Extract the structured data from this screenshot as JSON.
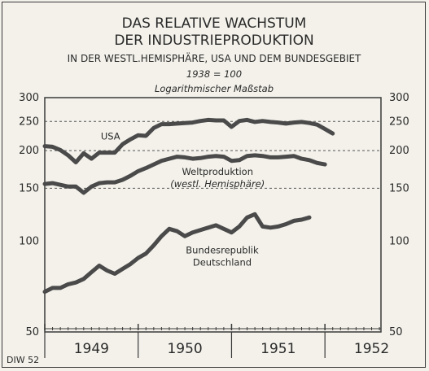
{
  "chart_data": {
    "type": "line",
    "title": "DAS RELATIVE WACHSTUM",
    "title2": "DER INDUSTRIEPRODUKTION",
    "subtitle": "IN DER WESTL.HEMISPHÄRE, USA UND DEM BUNDESGEBIET",
    "base_note": "1938 = 100",
    "scale_note": "Logarithmischer Maßstab",
    "source": "DIW 52",
    "y_scale": "log",
    "ylim": [
      50,
      300
    ],
    "y_ticks": [
      {
        "value": 300,
        "label": "300"
      },
      {
        "value": 250,
        "label": "250"
      },
      {
        "value": 200,
        "label": "200"
      },
      {
        "value": 150,
        "label": "150"
      },
      {
        "value": 100,
        "label": "100"
      },
      {
        "value": 50,
        "label": "50"
      }
    ],
    "dashed_gridlines": [
      250,
      200,
      150
    ],
    "x_range": [
      1949.0,
      1952.6
    ],
    "year_labels": [
      {
        "year": 1949,
        "label": "1949"
      },
      {
        "year": 1950,
        "label": "1950"
      },
      {
        "year": 1951,
        "label": "1951"
      },
      {
        "year": 1952,
        "label": "1952"
      }
    ],
    "x": [
      1949.0,
      1949.083,
      1949.167,
      1949.25,
      1949.333,
      1949.417,
      1949.5,
      1949.583,
      1949.667,
      1949.75,
      1949.833,
      1949.917,
      1950.0,
      1950.083,
      1950.167,
      1950.25,
      1950.333,
      1950.417,
      1950.5,
      1950.583,
      1950.667,
      1950.75,
      1950.833,
      1950.917,
      1951.0,
      1951.083,
      1951.167,
      1951.25,
      1951.333,
      1951.417,
      1951.5,
      1951.583,
      1951.667,
      1951.75,
      1951.833,
      1951.917,
      1952.0,
      1952.083,
      1952.167,
      1952.25,
      1952.333,
      1952.417
    ],
    "series": [
      {
        "name": "USA",
        "label_lines": [
          "USA"
        ],
        "values": [
          207,
          206,
          201,
          193,
          183,
          196,
          188,
          197,
          197,
          197,
          210,
          218,
          225,
          224,
          238,
          245,
          245,
          246,
          247,
          248,
          251,
          253,
          252,
          252,
          240,
          251,
          253,
          249,
          251,
          249,
          248,
          246,
          248,
          249,
          247,
          244,
          236,
          228,
          0,
          0,
          0,
          0
        ]
      },
      {
        "name": "Weltproduktion (westl. Hemisphäre)",
        "label_lines": [
          "Weltproduktion",
          "(westl. Hemisphäre)"
        ],
        "values": [
          155,
          156,
          154,
          152,
          152,
          145,
          152,
          156,
          157,
          157,
          160,
          165,
          171,
          175,
          180,
          185,
          188,
          191,
          190,
          188,
          189,
          191,
          192,
          191,
          185,
          186,
          192,
          193,
          192,
          190,
          190,
          191,
          192,
          188,
          186,
          182,
          180,
          0,
          0,
          0,
          0,
          0
        ]
      },
      {
        "name": "Bundesrepublik Deutschland",
        "label_lines": [
          "Bundesrepublik",
          "Deutschland"
        ],
        "values": [
          68,
          70,
          70,
          72,
          73,
          75,
          79,
          83,
          80,
          78,
          81,
          84,
          88,
          91,
          97,
          104,
          110,
          108,
          104,
          107,
          109,
          111,
          113,
          110,
          107,
          112,
          120,
          123,
          112,
          111,
          112,
          114,
          117,
          118,
          120,
          0,
          0,
          0,
          0,
          0,
          0,
          0
        ]
      }
    ],
    "grid": false,
    "legend": "inline labels"
  }
}
